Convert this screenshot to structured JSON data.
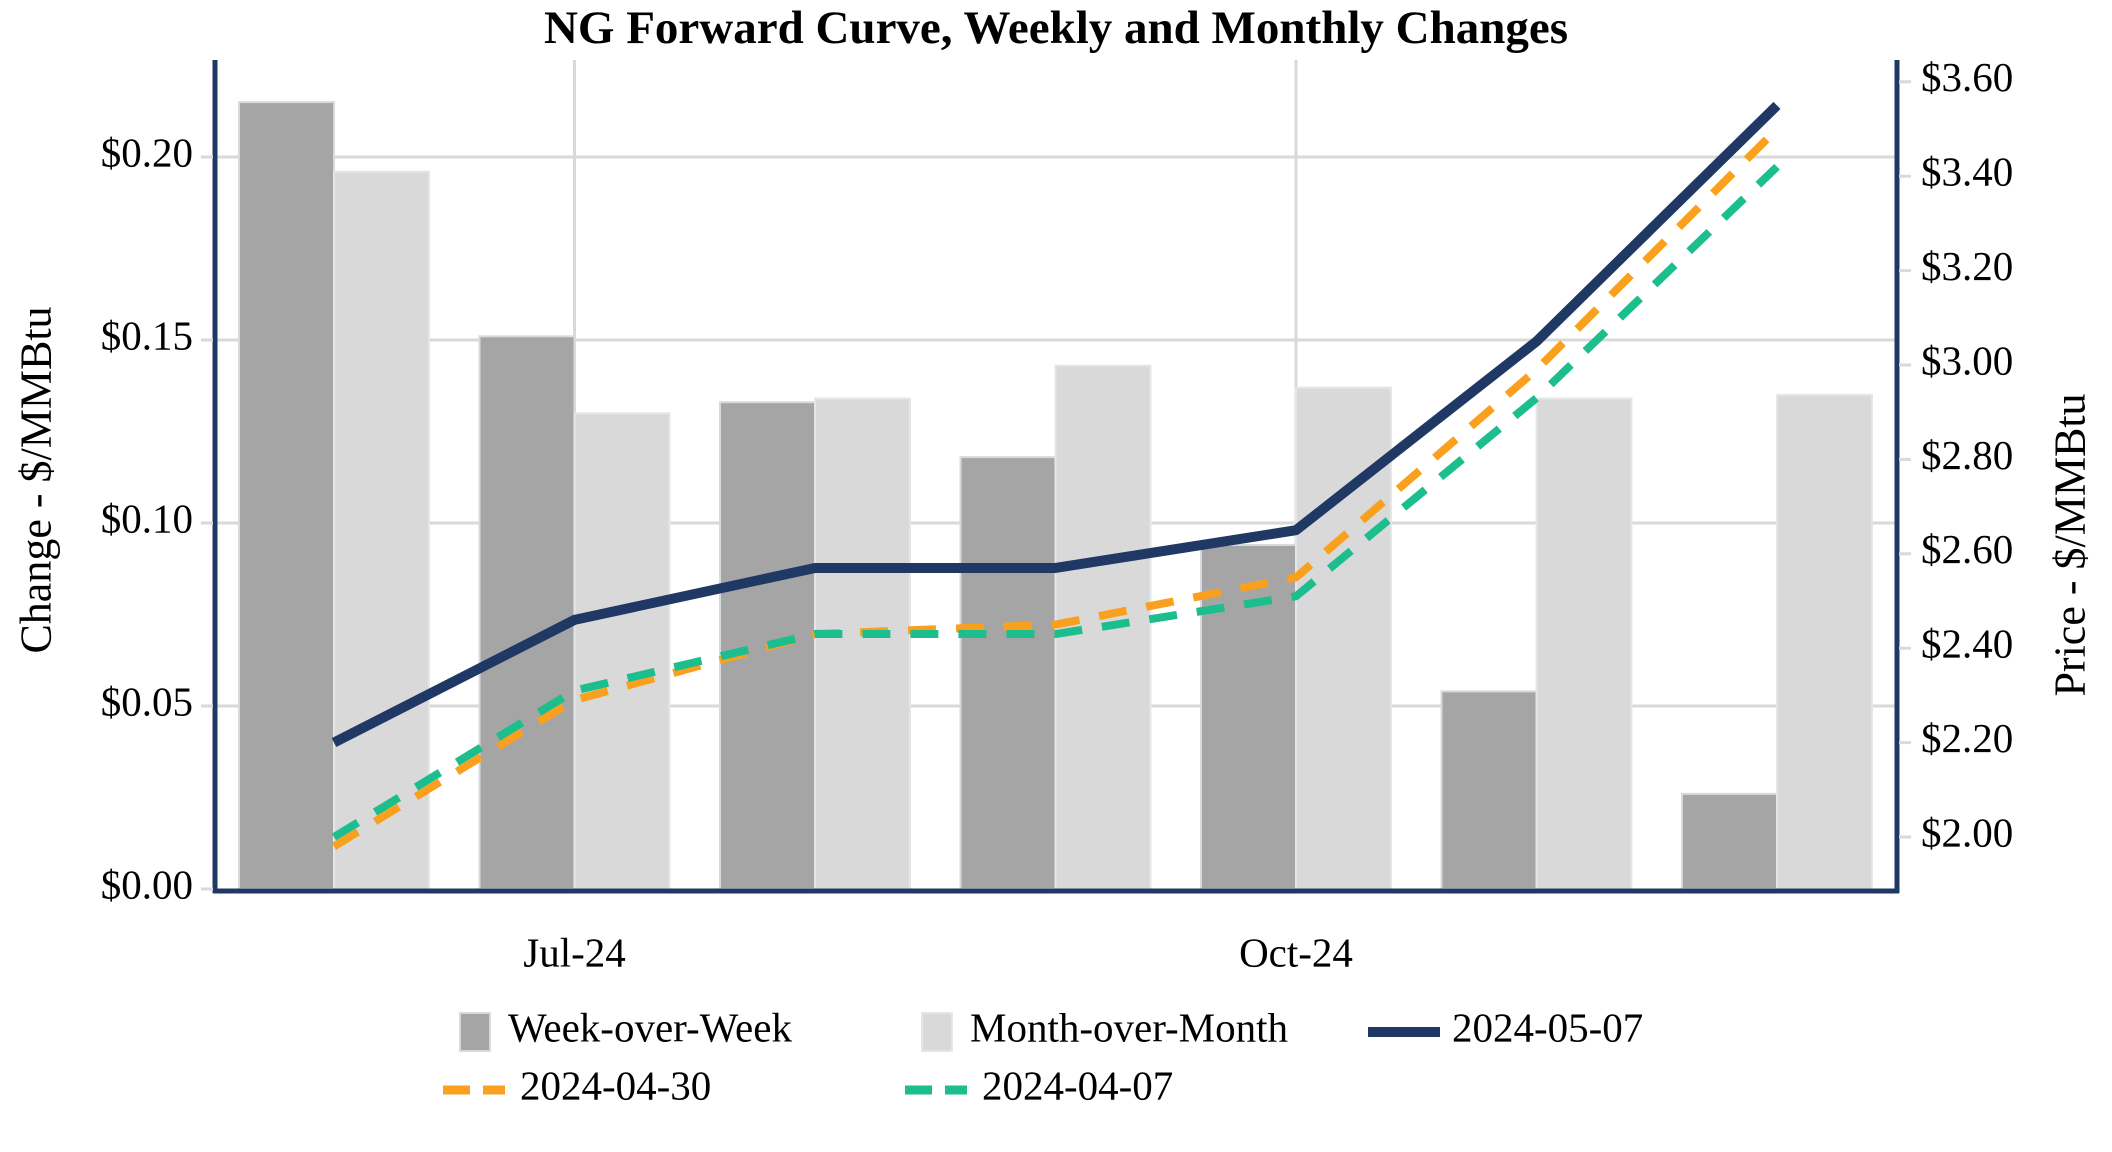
{
  "title": "NG Forward Curve, Weekly and Monthly Changes",
  "colors": {
    "frame_navy": "#203864",
    "gridline": "#D9D9D9",
    "bar_dark": "#A5A5A5",
    "bar_dark_border": "#D6DADF",
    "bar_light": "#D9D9D9",
    "bar_light_border": "#E4E7EA",
    "line_navy": "#203864",
    "line_orange": "#F9A11E",
    "line_green": "#1CBE8E",
    "text": "#000000",
    "background": "#FFFFFF"
  },
  "chart_data": {
    "type": "combo (bar + line, dual axis)",
    "n_groups": 7,
    "x_tick_labels": [
      {
        "index": 1,
        "label": "Jul-24"
      },
      {
        "index": 4,
        "label": "Oct-24"
      }
    ],
    "bar_series": [
      {
        "name": "Week-over-Week",
        "axis": "left",
        "color": "#A5A5A5",
        "values": [
          0.215,
          0.151,
          0.133,
          0.118,
          0.094,
          0.054,
          0.026
        ]
      },
      {
        "name": "Month-over-Month",
        "axis": "left",
        "color": "#D9D9D9",
        "values": [
          0.196,
          0.13,
          0.134,
          0.143,
          0.137,
          0.134,
          0.135
        ]
      }
    ],
    "line_series": [
      {
        "name": "2024-05-07",
        "axis": "right",
        "color": "#203864",
        "style": "solid",
        "values": [
          2.2,
          2.46,
          2.57,
          2.57,
          2.65,
          3.05,
          3.55
        ]
      },
      {
        "name": "2024-04-30",
        "axis": "right",
        "color": "#F9A11E",
        "style": "dashed",
        "values": [
          1.98,
          2.29,
          2.43,
          2.45,
          2.55,
          2.99,
          3.5
        ]
      },
      {
        "name": "2024-04-07",
        "axis": "right",
        "color": "#1CBE8E",
        "style": "dashed",
        "values": [
          2.0,
          2.31,
          2.43,
          2.43,
          2.51,
          2.93,
          3.42
        ]
      }
    ],
    "y_left": {
      "label": "Change - $/MMBtu",
      "range": [
        0,
        0.2265
      ],
      "ticks": [
        {
          "v": 0.0,
          "label": "$0.00"
        },
        {
          "v": 0.05,
          "label": "$0.05"
        },
        {
          "v": 0.1,
          "label": "$0.10"
        },
        {
          "v": 0.15,
          "label": "$0.15"
        },
        {
          "v": 0.2,
          "label": "$0.20"
        }
      ]
    },
    "y_right": {
      "label": "Price - $/MMBtu",
      "range": [
        1.89,
        3.65
      ],
      "ticks": [
        {
          "v": 2.0,
          "label": "$2.00"
        },
        {
          "v": 2.2,
          "label": "$2.20"
        },
        {
          "v": 2.4,
          "label": "$2.40"
        },
        {
          "v": 2.6,
          "label": "$2.60"
        },
        {
          "v": 2.8,
          "label": "$2.80"
        },
        {
          "v": 3.0,
          "label": "$3.00"
        },
        {
          "v": 3.2,
          "label": "$3.20"
        },
        {
          "v": 3.4,
          "label": "$3.40"
        },
        {
          "v": 3.6,
          "label": "$3.60"
        }
      ]
    },
    "grid": {
      "horizontal_step": 0.05,
      "vertical_at_labeled_months": true
    },
    "legend": {
      "position": "bottom",
      "rows": [
        [
          "Week-over-Week",
          "Month-over-Month",
          "2024-05-07"
        ],
        [
          "2024-04-30",
          "2024-04-07"
        ]
      ]
    }
  },
  "axis_titles": {
    "left": "Change - $/MMBtu",
    "right": "Price - $/MMBtu"
  }
}
